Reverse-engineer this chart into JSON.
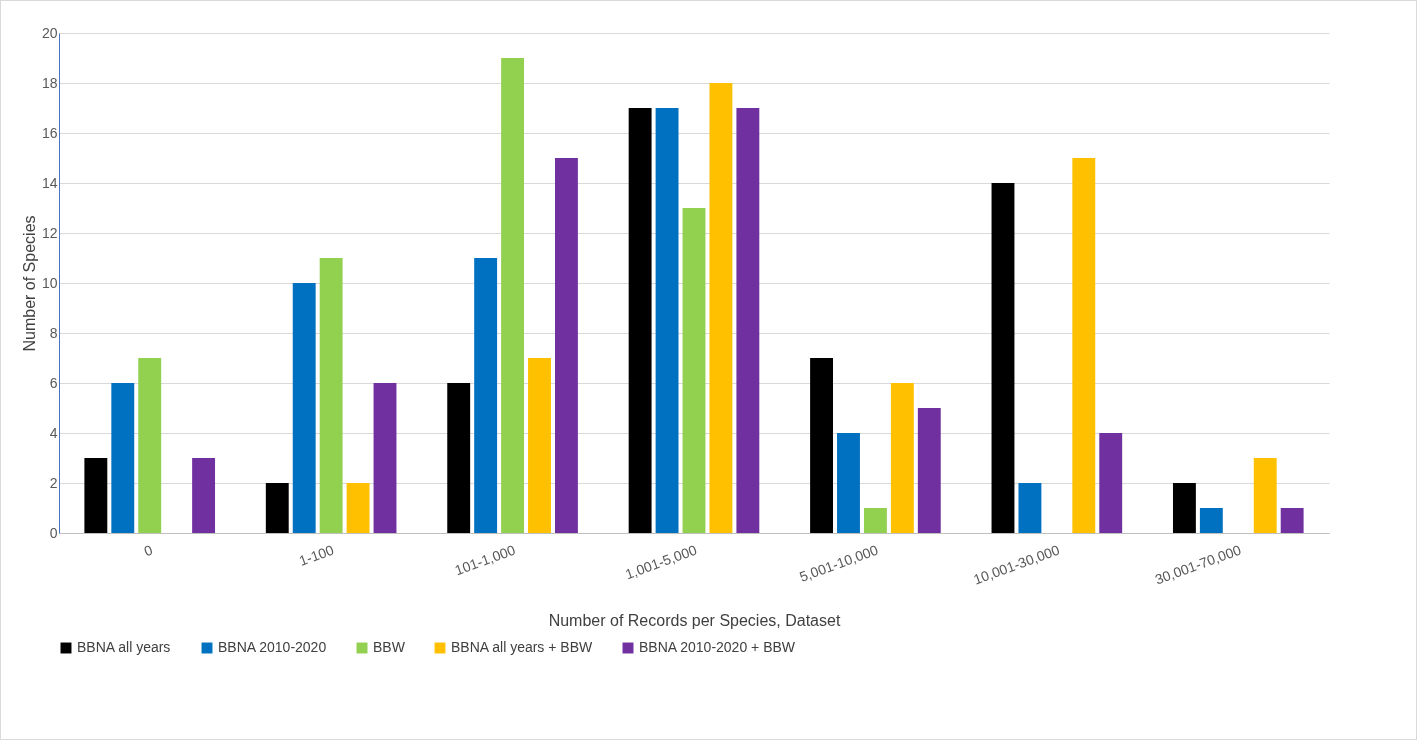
{
  "chart_data": {
    "type": "bar",
    "xlabel": "Number of Records per Species, Dataset",
    "ylabel": "Number of Species",
    "categories": [
      "0",
      "1-100",
      "101-1,000",
      "1,001-5,000",
      "5,001-10,000",
      "10,001-30,000",
      "30,001-70,000"
    ],
    "series": [
      {
        "name": "BBNA all years",
        "color": "#000000",
        "values": [
          3,
          2,
          6,
          17,
          7,
          14,
          2
        ]
      },
      {
        "name": "BBNA 2010-2020",
        "color": "#0070c0",
        "values": [
          6,
          10,
          11,
          17,
          4,
          2,
          1
        ]
      },
      {
        "name": "BBW",
        "color": "#92d050",
        "values": [
          7,
          11,
          19,
          13,
          1,
          0,
          0
        ]
      },
      {
        "name": "BBNA all years + BBW",
        "color": "#ffc000",
        "values": [
          0,
          2,
          7,
          18,
          6,
          15,
          3
        ]
      },
      {
        "name": "BBNA 2010-2020 + BBW",
        "color": "#7030a0",
        "values": [
          3,
          6,
          15,
          17,
          5,
          4,
          1
        ]
      }
    ],
    "ylim": [
      0,
      20
    ],
    "yticks": [
      0,
      2,
      4,
      6,
      8,
      10,
      12,
      14,
      16,
      18,
      20
    ],
    "grid": "y",
    "legend": "bottom"
  }
}
